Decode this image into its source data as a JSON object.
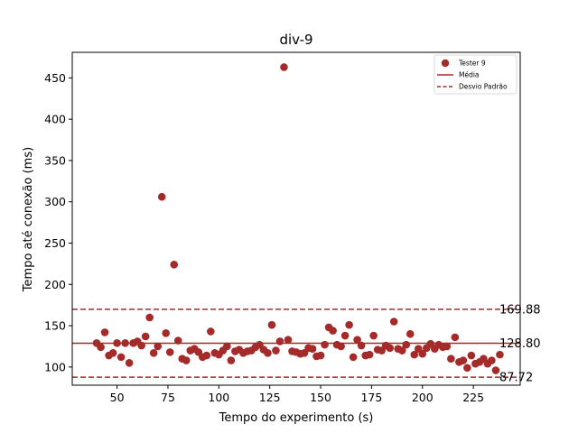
{
  "chart_data": {
    "type": "scatter",
    "title": "div-9",
    "xlabel": "Tempo do experimento (s)",
    "ylabel": "Tempo até conexão (ms)",
    "xlim": [
      28,
      248
    ],
    "ylim": [
      78,
      481
    ],
    "x_ticks": [
      50,
      75,
      100,
      125,
      150,
      175,
      200,
      225
    ],
    "y_ticks": [
      100,
      150,
      200,
      250,
      300,
      350,
      400,
      450
    ],
    "grid": false,
    "legend_position": "top-right",
    "colors": {
      "series": "#a52a2a",
      "mean": "#a52a2a",
      "std": "#a52a2a"
    },
    "series": [
      {
        "name": "Tester 9",
        "points": [
          [
            40,
            129
          ],
          [
            42,
            124
          ],
          [
            44,
            142
          ],
          [
            46,
            114
          ],
          [
            48,
            117
          ],
          [
            50,
            129
          ],
          [
            52,
            112
          ],
          [
            54,
            129
          ],
          [
            56,
            105
          ],
          [
            58,
            129
          ],
          [
            60,
            131
          ],
          [
            62,
            126
          ],
          [
            64,
            137
          ],
          [
            66,
            160
          ],
          [
            68,
            117
          ],
          [
            70,
            125
          ],
          [
            72,
            306
          ],
          [
            74,
            141
          ],
          [
            76,
            118
          ],
          [
            78,
            224
          ],
          [
            80,
            132
          ],
          [
            82,
            110
          ],
          [
            84,
            108
          ],
          [
            86,
            120
          ],
          [
            88,
            122
          ],
          [
            90,
            118
          ],
          [
            92,
            112
          ],
          [
            94,
            114
          ],
          [
            96,
            143
          ],
          [
            98,
            117
          ],
          [
            100,
            115
          ],
          [
            102,
            120
          ],
          [
            104,
            125
          ],
          [
            106,
            108
          ],
          [
            108,
            119
          ],
          [
            110,
            121
          ],
          [
            112,
            117
          ],
          [
            114,
            119
          ],
          [
            116,
            120
          ],
          [
            118,
            124
          ],
          [
            120,
            127
          ],
          [
            122,
            121
          ],
          [
            124,
            117
          ],
          [
            126,
            151
          ],
          [
            128,
            120
          ],
          [
            130,
            131
          ],
          [
            132,
            463
          ],
          [
            134,
            133
          ],
          [
            136,
            119
          ],
          [
            138,
            118
          ],
          [
            140,
            116
          ],
          [
            142,
            117
          ],
          [
            144,
            123
          ],
          [
            146,
            122
          ],
          [
            148,
            113
          ],
          [
            150,
            114
          ],
          [
            152,
            127
          ],
          [
            154,
            148
          ],
          [
            156,
            144
          ],
          [
            158,
            127
          ],
          [
            160,
            125
          ],
          [
            162,
            138
          ],
          [
            164,
            151
          ],
          [
            166,
            112
          ],
          [
            168,
            133
          ],
          [
            170,
            126
          ],
          [
            172,
            114
          ],
          [
            174,
            115
          ],
          [
            176,
            138
          ],
          [
            178,
            121
          ],
          [
            180,
            120
          ],
          [
            182,
            126
          ],
          [
            184,
            123
          ],
          [
            186,
            155
          ],
          [
            188,
            122
          ],
          [
            190,
            120
          ],
          [
            192,
            127
          ],
          [
            194,
            140
          ],
          [
            196,
            115
          ],
          [
            198,
            122
          ],
          [
            200,
            116
          ],
          [
            202,
            123
          ],
          [
            204,
            128
          ],
          [
            206,
            122
          ],
          [
            208,
            127
          ],
          [
            210,
            124
          ],
          [
            212,
            125
          ],
          [
            214,
            110
          ],
          [
            216,
            136
          ],
          [
            218,
            106
          ],
          [
            220,
            108
          ],
          [
            222,
            99
          ],
          [
            224,
            114
          ],
          [
            226,
            104
          ],
          [
            228,
            106
          ],
          [
            230,
            110
          ],
          [
            232,
            104
          ],
          [
            234,
            108
          ],
          [
            236,
            96
          ],
          [
            238,
            115
          ]
        ]
      }
    ],
    "reference_lines": [
      {
        "name": "Média",
        "value": 128.8,
        "label": "128.80",
        "style": "solid"
      },
      {
        "name": "Desvio Padrão",
        "value": 169.88,
        "label": "169.88",
        "style": "dashed"
      },
      {
        "name": "Desvio Padrão",
        "value": 87.72,
        "label": "87.72",
        "style": "dashed"
      }
    ],
    "legend": [
      {
        "label": "Tester 9",
        "marker": "circle"
      },
      {
        "label": "Média",
        "marker": "solid-line"
      },
      {
        "label": "Desvio Padrão",
        "marker": "dashed-line"
      }
    ]
  }
}
